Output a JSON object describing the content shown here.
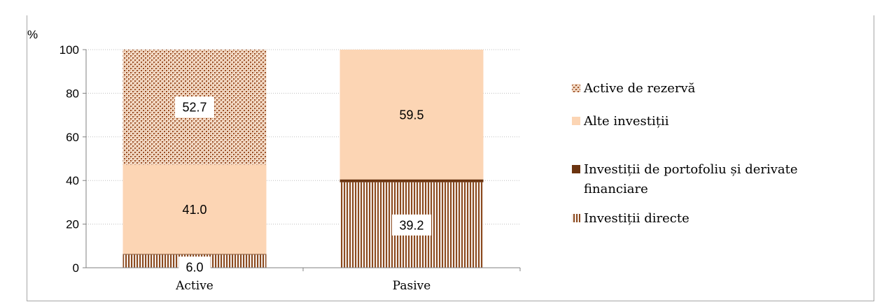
{
  "chart_data": {
    "type": "bar",
    "stacked": true,
    "ylabel": "%",
    "ylim": [
      0,
      100
    ],
    "yticks": [
      0,
      20,
      40,
      60,
      80,
      100
    ],
    "grid": true,
    "legend_position": "right",
    "categories": [
      "Active",
      "Pasive"
    ],
    "series": [
      {
        "name": "Investiții directe",
        "values": [
          6.0,
          39.2
        ],
        "pattern": "vertical-stripes",
        "color": "#8b4a1f"
      },
      {
        "name": "Investiții de portofoliu și derivate financiare",
        "values": [
          0.3,
          1.3
        ],
        "pattern": "solid",
        "color": "#6b3410"
      },
      {
        "name": "Alte investiții",
        "values": [
          41.0,
          59.5
        ],
        "pattern": "solid",
        "color": "#fcd5b4"
      },
      {
        "name": "Active de rezervă",
        "values": [
          52.7,
          0
        ],
        "pattern": "checker",
        "color": "#a0522d"
      }
    ],
    "data_labels": [
      {
        "category": 0,
        "series": 0,
        "text": "6.0",
        "boxed": true
      },
      {
        "category": 0,
        "series": 2,
        "text": "41.0",
        "boxed": false
      },
      {
        "category": 0,
        "series": 3,
        "text": "52.7",
        "boxed": true
      },
      {
        "category": 1,
        "series": 0,
        "text": "39.2",
        "boxed": true
      },
      {
        "category": 1,
        "series": 2,
        "text": "59.5",
        "boxed": false
      }
    ],
    "legend_order": [
      3,
      2,
      1,
      0
    ],
    "legend_lines": [
      [
        "Active de rezervă"
      ],
      [
        "Alte investiții"
      ],
      [
        "Investiții de portofoliu și derivate",
        "financiare"
      ],
      [
        "Investiții directe"
      ]
    ]
  }
}
